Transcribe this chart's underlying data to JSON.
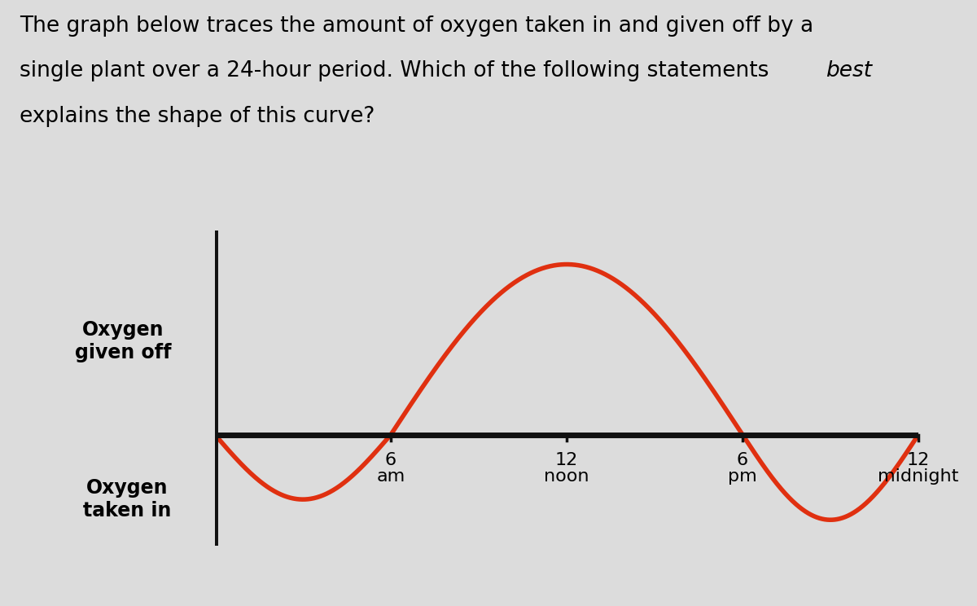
{
  "title_line1": "The graph below traces the amount of oxygen taken in and given off by a",
  "title_line2_normal": "single plant over a 24-hour period. Which of the following statements ",
  "title_line2_italic": "best",
  "title_line3": "explains the shape of this curve?",
  "ylabel_top": "Oxygen\ngiven off",
  "ylabel_bottom": "Oxygen\ntaken in",
  "x_tick_positions": [
    6,
    12,
    18,
    24
  ],
  "x_tick_numbers": [
    "6",
    "12",
    "6",
    "12"
  ],
  "x_tick_sublabels": [
    "am",
    "noon",
    "pm",
    "midnight"
  ],
  "curve_color": "#e03010",
  "axis_color": "#111111",
  "background_color": "#dcdcdc",
  "title_fontsize": 19,
  "label_fontsize": 17,
  "tick_fontsize": 16
}
